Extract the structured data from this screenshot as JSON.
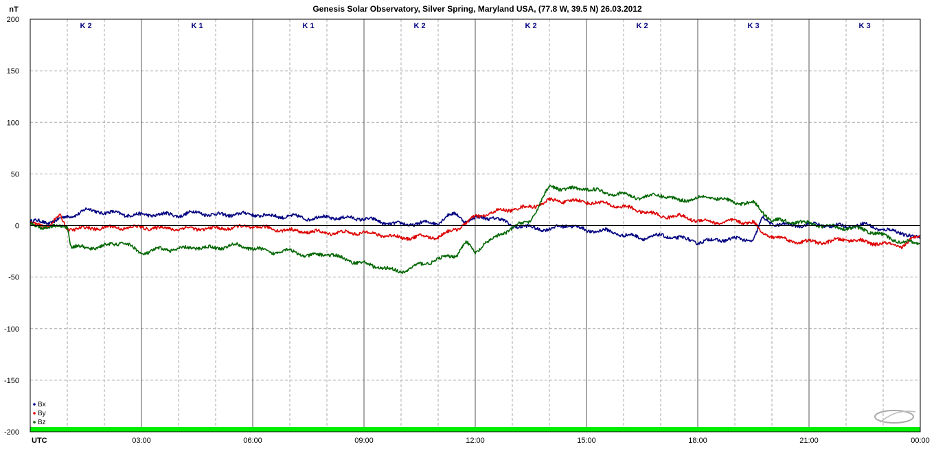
{
  "chart_data": {
    "type": "line",
    "title": "Genesis Solar Observatory, Silver Spring, Maryland USA, (77.8 W, 39.5 N)  26.03.2012",
    "ylabel": "nT",
    "xlabel": "UTC",
    "ylim": [
      -200,
      200
    ],
    "xlim": [
      0,
      24
    ],
    "y_ticks": [
      200,
      150,
      100,
      50,
      0,
      -50,
      -100,
      -150,
      -200
    ],
    "x_ticks": [
      {
        "x": 3,
        "label": "03:00"
      },
      {
        "x": 6,
        "label": "06:00"
      },
      {
        "x": 9,
        "label": "09:00"
      },
      {
        "x": 12,
        "label": "12:00"
      },
      {
        "x": 15,
        "label": "15:00"
      },
      {
        "x": 18,
        "label": "18:00"
      },
      {
        "x": 21,
        "label": "21:00"
      },
      {
        "x": 24,
        "label": "00:00"
      }
    ],
    "grid": true,
    "legend_position": "bottom-left",
    "k_index": [
      {
        "start": 0,
        "label": "K 2"
      },
      {
        "start": 3,
        "label": "K 1"
      },
      {
        "start": 6,
        "label": "K 1"
      },
      {
        "start": 9,
        "label": "K 2"
      },
      {
        "start": 12,
        "label": "K 2"
      },
      {
        "start": 15,
        "label": "K 2"
      },
      {
        "start": 18,
        "label": "K 3"
      },
      {
        "start": 21,
        "label": "K 3"
      }
    ],
    "series": [
      {
        "name": "Bx",
        "color": "#000080",
        "x": [
          0,
          0.5,
          1.0,
          1.5,
          2.0,
          2.5,
          3.0,
          3.5,
          4.0,
          4.5,
          5.0,
          5.5,
          6.0,
          6.5,
          7.0,
          7.5,
          8.0,
          8.5,
          9.0,
          9.5,
          10.0,
          10.5,
          11.0,
          11.25,
          11.5,
          11.75,
          12.0,
          12.5,
          13.0,
          13.5,
          14.0,
          14.5,
          15.0,
          15.5,
          16.0,
          16.5,
          17.0,
          17.5,
          18.0,
          18.5,
          19.0,
          19.5,
          19.75,
          20.0,
          20.5,
          21.0,
          21.5,
          22.0,
          22.5,
          23.0,
          23.5,
          24.0
        ],
        "y": [
          4,
          3,
          8,
          15,
          13,
          11,
          10,
          11,
          10,
          13,
          10,
          11,
          11,
          9,
          9,
          7,
          8,
          7,
          7,
          3,
          1,
          2,
          3,
          9,
          11,
          4,
          7,
          8,
          0,
          -2,
          -4,
          1,
          -5,
          -5,
          -9,
          -12,
          -10,
          -12,
          -16,
          -14,
          -13,
          -14,
          7,
          2,
          0,
          1,
          0,
          -1,
          1,
          -4,
          -7,
          -13
        ]
      },
      {
        "name": "By",
        "color": "#dd0000",
        "x": [
          0,
          0.5,
          0.8,
          1.0,
          1.5,
          2.0,
          3.0,
          4.0,
          5.0,
          6.0,
          7.0,
          8.0,
          9.0,
          9.5,
          10.0,
          10.5,
          11.0,
          11.5,
          12.0,
          12.5,
          13.0,
          13.5,
          14.0,
          14.5,
          15.0,
          15.5,
          16.0,
          16.5,
          17.0,
          17.5,
          18.0,
          18.5,
          19.0,
          19.5,
          19.75,
          20.0,
          20.5,
          21.0,
          21.5,
          22.0,
          22.5,
          23.0,
          23.5,
          24.0
        ],
        "y": [
          1,
          0,
          9,
          -3,
          -3,
          -2,
          -2,
          -3,
          -3,
          -1,
          -5,
          -7,
          -7,
          -9,
          -12,
          -11,
          -11,
          -3,
          8,
          13,
          16,
          18,
          24,
          24,
          23,
          21,
          18,
          14,
          9,
          9,
          5,
          3,
          4,
          3,
          -8,
          -10,
          -15,
          -16,
          -16,
          -13,
          -16,
          -18,
          -20,
          -9
        ]
      },
      {
        "name": "Bz",
        "color": "#006600",
        "x": [
          0,
          0.5,
          1.0,
          1.1,
          1.5,
          2.0,
          2.5,
          3.0,
          3.5,
          4.0,
          4.5,
          5.0,
          5.5,
          6.0,
          6.5,
          7.0,
          7.5,
          8.0,
          8.5,
          9.0,
          9.5,
          10.0,
          10.5,
          11.0,
          11.5,
          11.75,
          12.0,
          12.25,
          12.5,
          13.0,
          13.5,
          14.0,
          14.5,
          15.0,
          15.5,
          16.0,
          16.5,
          17.0,
          17.5,
          18.0,
          18.5,
          19.0,
          19.5,
          20.0,
          20.5,
          21.0,
          21.5,
          22.0,
          22.5,
          23.0,
          23.5,
          24.0
        ],
        "y": [
          1,
          -2,
          0,
          -20,
          -22,
          -20,
          -16,
          -27,
          -23,
          -23,
          -21,
          -22,
          -19,
          -22,
          -26,
          -24,
          -30,
          -27,
          -33,
          -37,
          -41,
          -45,
          -38,
          -33,
          -28,
          -16,
          -27,
          -17,
          -13,
          -2,
          5,
          38,
          35,
          36,
          32,
          30,
          27,
          30,
          24,
          27,
          27,
          22,
          22,
          5,
          4,
          2,
          -1,
          -2,
          -4,
          -10,
          -16,
          -17
        ]
      }
    ]
  }
}
